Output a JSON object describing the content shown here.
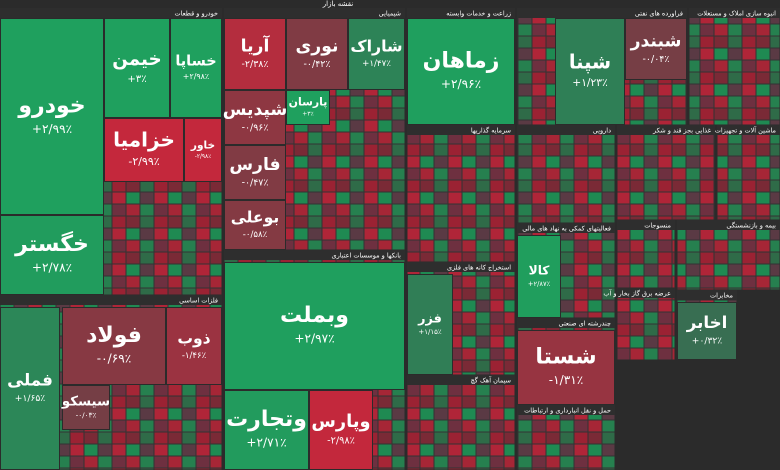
{
  "chart_data": {
    "type": "treemap",
    "title": "نقشه بازار",
    "colors": {
      "up": "#1fa05e",
      "down": "#c4283c",
      "flat": "#4a4a4a"
    },
    "sectors": [
      {
        "name": "خودرو و قطعات",
        "tiles": [
          {
            "name": "خودرو",
            "value": 2.99,
            "value_label": "+۲/۹۹٪"
          },
          {
            "name": "خیمن",
            "value": 3,
            "value_label": "+۳٪"
          },
          {
            "name": "خساپا",
            "value": 2.98,
            "value_label": "+۲/۹۸٪"
          },
          {
            "name": "خزامیا",
            "value": -2.99,
            "value_label": "-۲/۹۹٪"
          },
          {
            "name": "خاور",
            "value": -2.98,
            "value_label": "-۲/۹۸٪"
          },
          {
            "name": "خگستر",
            "value": 2.78,
            "value_label": "+۲/۷۸٪"
          }
        ]
      },
      {
        "name": "فلزات اساسی",
        "tiles": [
          {
            "name": "فملی",
            "value": 1.65,
            "value_label": "+۱/۶۵٪"
          },
          {
            "name": "فولاد",
            "value": -0.69,
            "value_label": "-۰/۶۹٪"
          },
          {
            "name": "ذوب",
            "value": -1.46,
            "value_label": "-۱/۴۶٪"
          },
          {
            "name": "سیسکو",
            "value": -0.03,
            "value_label": "-۰/۰۳٪"
          }
        ]
      },
      {
        "name": "شیمیایی",
        "tiles": [
          {
            "name": "آریا",
            "value": -2.38,
            "value_label": "-۲/۳۸٪"
          },
          {
            "name": "نوری",
            "value": -0.42,
            "value_label": "-۰/۴۲٪"
          },
          {
            "name": "شاراک",
            "value": 1.47,
            "value_label": "+۱/۴۷٪"
          },
          {
            "name": "شپدیس",
            "value": -0.96,
            "value_label": "-۰/۹۶٪"
          },
          {
            "name": "فارس",
            "value": -0.47,
            "value_label": "-۰/۴۷٪"
          },
          {
            "name": "بوعلی",
            "value": -0.58,
            "value_label": "-۰/۵۸٪"
          },
          {
            "name": "پارسان",
            "value": 3,
            "value_label": "+۳٪"
          }
        ]
      },
      {
        "name": "بانکها و موسسات اعتباری",
        "tiles": [
          {
            "name": "وبملت",
            "value": 2.97,
            "value_label": "+۲/۹۷٪"
          },
          {
            "name": "وتجارت",
            "value": 2.71,
            "value_label": "+۲/۷۱٪"
          },
          {
            "name": "وپارس",
            "value": -2.98,
            "value_label": "-۲/۹۸٪"
          }
        ]
      },
      {
        "name": "زراعت و خدمات وابسته",
        "tiles": [
          {
            "name": "زماهان",
            "value": 2.96,
            "value_label": "+۲/۹۶٪"
          }
        ]
      },
      {
        "name": "فراورده های نفتی",
        "tiles": [
          {
            "name": "شپنا",
            "value": 1.23,
            "value_label": "+۱/۲۳٪"
          },
          {
            "name": "شبندر",
            "value": -0.04,
            "value_label": "-۰/۰۴٪"
          }
        ]
      },
      {
        "name": "انبوه سازی املاک و مستغلات",
        "tiles": []
      },
      {
        "name": "سرمایه گذاریها",
        "tiles": []
      },
      {
        "name": "دارویی",
        "tiles": []
      },
      {
        "name": "غذایی بجز قند و شکر",
        "tiles": []
      },
      {
        "name": "ماشین آلات و تجهیزات",
        "tiles": []
      },
      {
        "name": "استخراج کانه های فلزی",
        "tiles": [
          {
            "name": "فزر",
            "value": 1.15,
            "value_label": "+۱/۱۵٪"
          }
        ]
      },
      {
        "name": "فعالیتهای کمکی به نهاد های مالی",
        "tiles": [
          {
            "name": "کالا",
            "value": 2.87,
            "value_label": "+۲/۸۷٪"
          }
        ]
      },
      {
        "name": "چندرشته ای صنعتی",
        "tiles": [
          {
            "name": "شستا",
            "value": -1.31,
            "value_label": "-۱/۳۱٪"
          }
        ]
      },
      {
        "name": "سیمان آهک گچ",
        "tiles": []
      },
      {
        "name": "حمل و نقل انبارداری و ارتباطات",
        "tiles": []
      },
      {
        "name": "منسوجات",
        "tiles": []
      },
      {
        "name": "بیمه و بازنشستگی",
        "tiles": []
      },
      {
        "name": "مخابرات",
        "tiles": [
          {
            "name": "اخابر",
            "value": 0.32,
            "value_label": "+۰/۳۲٪"
          }
        ]
      },
      {
        "name": "عرضه برق گاز بخار و آب",
        "tiles": []
      }
    ]
  }
}
